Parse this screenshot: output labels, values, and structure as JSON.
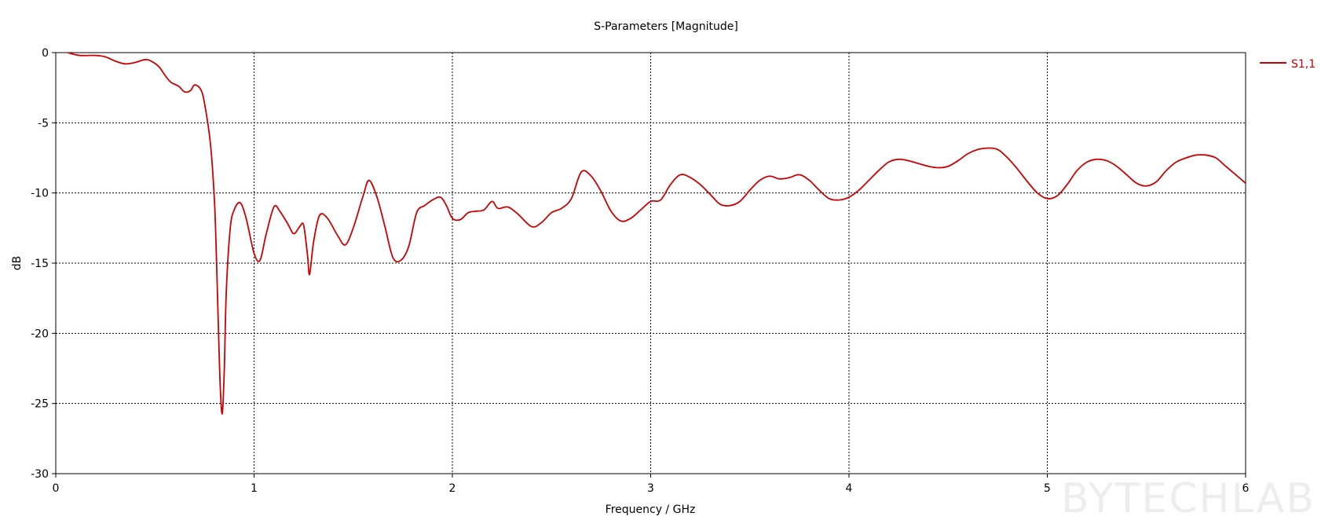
{
  "chart_data": {
    "type": "line",
    "title": "S-Parameters [Magnitude]",
    "xlabel": "Frequency / GHz",
    "ylabel": "dB",
    "xlim": [
      0,
      6
    ],
    "ylim": [
      -30,
      0
    ],
    "x_ticks": [
      "0",
      "1",
      "2",
      "3",
      "4",
      "5",
      "6"
    ],
    "y_ticks": [
      "0",
      "-5",
      "-10",
      "-15",
      "-20",
      "-25",
      "-30"
    ],
    "grid": true,
    "legend_position": "right",
    "series": [
      {
        "name": "S1,1",
        "color": "#cc0000",
        "x": [
          0.06,
          0.12,
          0.2,
          0.25,
          0.3,
          0.35,
          0.4,
          0.45,
          0.48,
          0.52,
          0.55,
          0.58,
          0.62,
          0.65,
          0.68,
          0.7,
          0.73,
          0.75,
          0.78,
          0.8,
          0.81,
          0.82,
          0.83,
          0.84,
          0.85,
          0.86,
          0.88,
          0.9,
          0.93,
          0.96,
          1.0,
          1.03,
          1.06,
          1.1,
          1.13,
          1.17,
          1.2,
          1.23,
          1.25,
          1.27,
          1.28,
          1.3,
          1.33,
          1.37,
          1.42,
          1.46,
          1.5,
          1.55,
          1.58,
          1.62,
          1.66,
          1.7,
          1.74,
          1.78,
          1.82,
          1.86,
          1.9,
          1.94,
          1.97,
          2.0,
          2.04,
          2.08,
          2.12,
          2.16,
          2.2,
          2.23,
          2.28,
          2.33,
          2.4,
          2.45,
          2.5,
          2.55,
          2.6,
          2.65,
          2.7,
          2.75,
          2.8,
          2.85,
          2.9,
          2.95,
          3.0,
          3.05,
          3.1,
          3.15,
          3.2,
          3.25,
          3.3,
          3.35,
          3.4,
          3.45,
          3.5,
          3.55,
          3.6,
          3.65,
          3.7,
          3.75,
          3.8,
          3.85,
          3.9,
          3.95,
          4.0,
          4.05,
          4.1,
          4.15,
          4.2,
          4.25,
          4.3,
          4.35,
          4.4,
          4.45,
          4.5,
          4.55,
          4.6,
          4.65,
          4.7,
          4.75,
          4.8,
          4.85,
          4.9,
          4.95,
          5.0,
          5.05,
          5.1,
          5.15,
          5.2,
          5.25,
          5.3,
          5.35,
          5.4,
          5.45,
          5.5,
          5.55,
          5.6,
          5.65,
          5.7,
          5.75,
          5.8,
          5.85,
          5.9,
          5.95,
          6.0
        ],
        "y": [
          0,
          -0.2,
          -0.2,
          -0.3,
          -0.6,
          -0.8,
          -0.7,
          -0.5,
          -0.6,
          -1.0,
          -1.6,
          -2.1,
          -2.4,
          -2.8,
          -2.7,
          -2.3,
          -2.6,
          -3.6,
          -6.5,
          -10.5,
          -14.5,
          -19.5,
          -24.0,
          -25.7,
          -22.5,
          -17.0,
          -12.5,
          -11.2,
          -10.7,
          -11.8,
          -14.3,
          -14.8,
          -13.0,
          -11.0,
          -11.3,
          -12.2,
          -12.9,
          -12.4,
          -12.3,
          -14.5,
          -15.8,
          -13.5,
          -11.6,
          -11.8,
          -13.0,
          -13.7,
          -12.5,
          -10.2,
          -9.1,
          -10.3,
          -12.4,
          -14.6,
          -14.8,
          -13.8,
          -11.4,
          -10.9,
          -10.5,
          -10.3,
          -10.9,
          -11.8,
          -11.9,
          -11.4,
          -11.3,
          -11.2,
          -10.6,
          -11.1,
          -11.0,
          -11.5,
          -12.4,
          -12.1,
          -11.4,
          -11.1,
          -10.4,
          -8.5,
          -8.8,
          -9.9,
          -11.3,
          -12.0,
          -11.8,
          -11.2,
          -10.6,
          -10.5,
          -9.4,
          -8.7,
          -8.9,
          -9.4,
          -10.1,
          -10.8,
          -10.9,
          -10.6,
          -9.8,
          -9.1,
          -8.8,
          -9.0,
          -8.9,
          -8.7,
          -9.1,
          -9.8,
          -10.4,
          -10.5,
          -10.3,
          -9.8,
          -9.1,
          -8.4,
          -7.8,
          -7.6,
          -7.7,
          -7.9,
          -8.1,
          -8.2,
          -8.1,
          -7.7,
          -7.2,
          -6.9,
          -6.8,
          -6.9,
          -7.5,
          -8.3,
          -9.2,
          -10.0,
          -10.4,
          -10.2,
          -9.4,
          -8.4,
          -7.8,
          -7.6,
          -7.7,
          -8.1,
          -8.7,
          -9.3,
          -9.5,
          -9.2,
          -8.4,
          -7.8,
          -7.5,
          -7.3,
          -7.3,
          -7.5,
          -8.1,
          -8.7,
          -9.3
        ]
      }
    ]
  },
  "watermark": "BYTECHLAB"
}
